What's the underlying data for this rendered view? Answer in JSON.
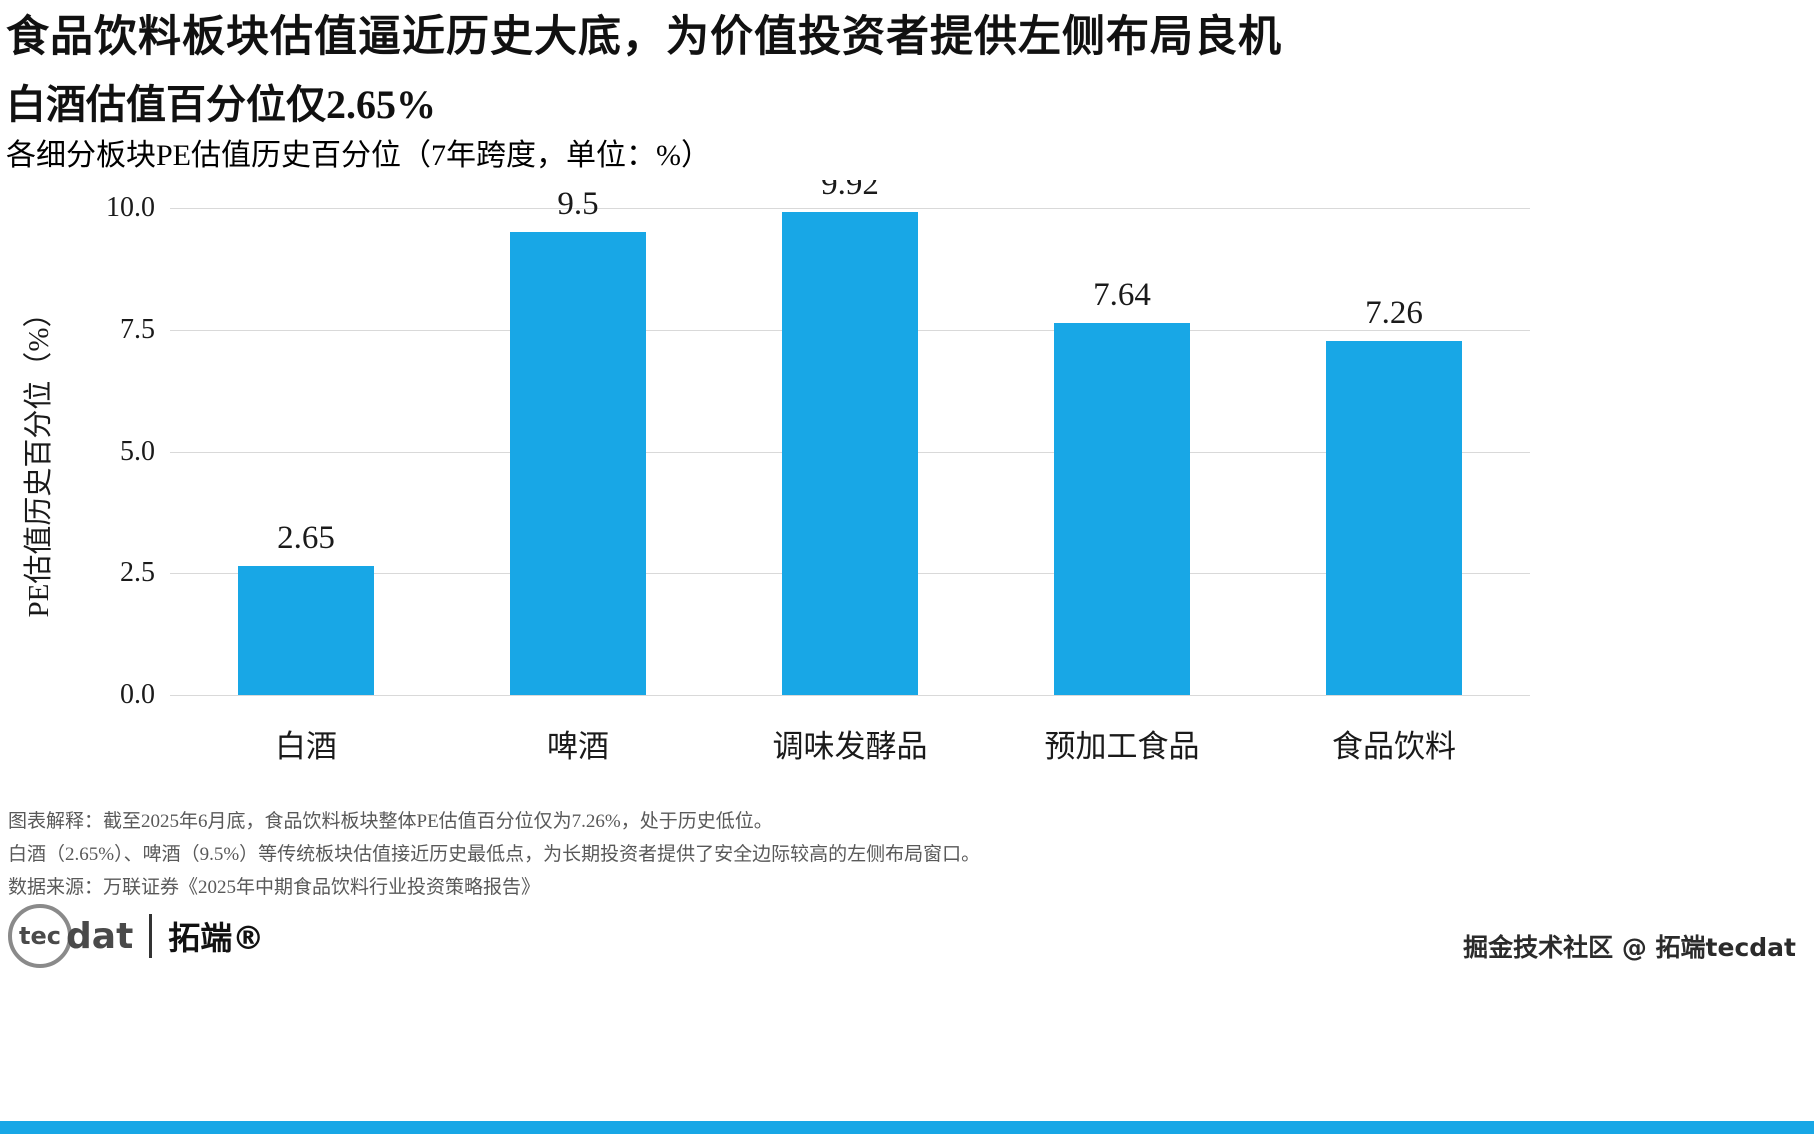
{
  "header": {
    "title_line1": "食品饮料板块估值逼近历史大底，为价值投资者提供左侧布局良机",
    "title_line2": "白酒估值百分位仅2.65%",
    "subtitle": "各细分板块PE估值历史百分位（7年跨度，单位：%）"
  },
  "chart_data": {
    "type": "bar",
    "title": "各细分板块PE估值历史百分位（7年跨度，单位：%）",
    "categories": [
      "白酒",
      "啤酒",
      "调味发酵品",
      "预加工食品",
      "食品饮料"
    ],
    "values": [
      2.65,
      9.5,
      9.92,
      7.64,
      7.26
    ],
    "value_labels": [
      "2.65",
      "9.5",
      "9.92",
      "7.64",
      "7.26"
    ],
    "xlabel": "",
    "ylabel": "PE估值历史百分位（%）",
    "ylim": [
      0,
      10
    ],
    "yticks": [
      "0.0",
      "2.5",
      "5.0",
      "7.5",
      "10.0"
    ],
    "grid": "horizontal",
    "legend": "none",
    "bar_color": "#18a7e6"
  },
  "footer": {
    "note1": "图表解释：截至2025年6月底，食品饮料板块整体PE估值百分位仅为7.26%，处于历史低位。",
    "note2": "白酒（2.65%）、啤酒（9.5%）等传统板块估值接近历史最低点，为长期投资者提供了安全边际较高的左侧布局窗口。",
    "note3": "数据来源：万联证券《2025年中期食品饮料行业投资策略报告》",
    "logo": {
      "circle_text": "tec",
      "rest_text": "dat",
      "brand": "拓端®"
    },
    "watermark": "掘金技术社区 @ 拓端tecdat"
  },
  "colors": {
    "accent_blue": "#18a7e6",
    "grid_gray": "#d9d9d9",
    "note_gray": "#595959"
  }
}
